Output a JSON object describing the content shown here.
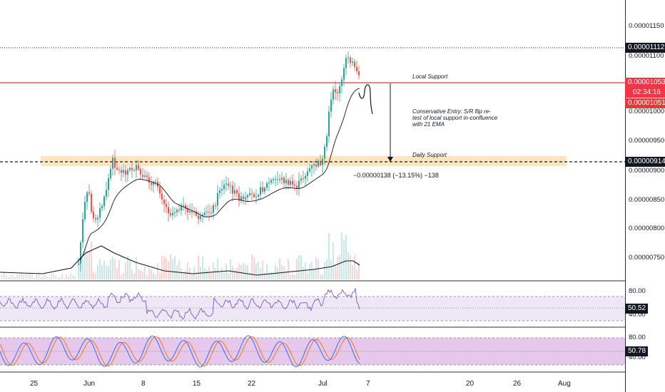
{
  "colors": {
    "up": "#26a69a",
    "down": "#ef5350",
    "resistance_line": "#f23645",
    "rsi_line": "#7e57c2",
    "rsi_band": "#ede7f6",
    "stoch_band": "#e1bee7",
    "stoch_k": "#2962ff",
    "stoch_d": "#ff6d00",
    "support_zone": "#ffe0b2"
  },
  "price_axis": {
    "ticks": [
      "0.00001150",
      "0.00001100",
      "0.00001000",
      "0.00000950",
      "0.00000900",
      "0.00000850",
      "0.00000800",
      "0.00000750"
    ],
    "high_tag": "0.00001112",
    "last_price_tag": "0.00001053",
    "countdown_tag": "02:34:16",
    "bid_tag": "0.00001051",
    "daily_support_tag": "0.00000914"
  },
  "annotations": {
    "local_support": "Local Support",
    "entry_line1": "Conservative Entry: S/R flip re-",
    "entry_line2": "test of local support in-confluence",
    "entry_line3": "with 21 EMA",
    "daily_support": "Daily Support",
    "measure": "−0.00000138 (−13.15%) −138"
  },
  "rsi_panel": {
    "upper": "80.00",
    "lower": "40.00",
    "value": "50.52"
  },
  "stoch_panel": {
    "upper": "80.00",
    "lower": "40.00",
    "value": "50.78"
  },
  "time_axis": {
    "labels": [
      "25",
      "Jun",
      "8",
      "15",
      "22",
      "Jul",
      "7",
      "20",
      "26",
      "Aug"
    ]
  }
}
